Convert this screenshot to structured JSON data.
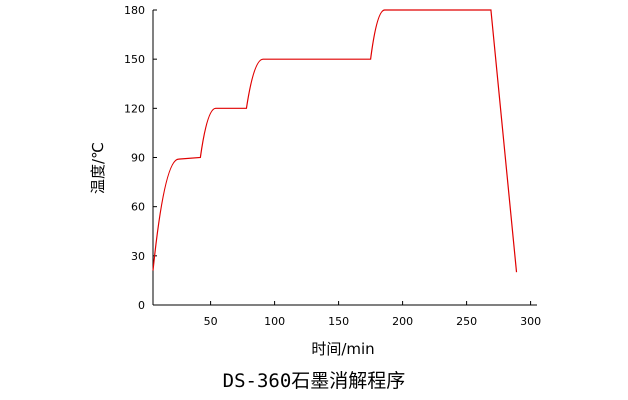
{
  "chart_data": {
    "type": "line",
    "title": "DS-360石墨消解程序",
    "xlabel": "时间/min",
    "ylabel": "温度/℃",
    "xlim": [
      5,
      305
    ],
    "ylim": [
      0,
      180
    ],
    "x_ticks": [
      50,
      100,
      150,
      200,
      250,
      300
    ],
    "y_ticks": [
      0,
      30,
      60,
      90,
      120,
      150,
      180
    ],
    "grid": false,
    "line_color": "#e00000",
    "series": [
      {
        "points": [
          {
            "x": 5,
            "y": 21,
            "segment": "start"
          },
          {
            "x": 25,
            "y": 89,
            "segment": "concave"
          },
          {
            "x": 42,
            "y": 90,
            "segment": "linear"
          },
          {
            "x": 54,
            "y": 120,
            "segment": "concave"
          },
          {
            "x": 78,
            "y": 120,
            "segment": "linear"
          },
          {
            "x": 91,
            "y": 150,
            "segment": "concave"
          },
          {
            "x": 175,
            "y": 150,
            "segment": "linear"
          },
          {
            "x": 186,
            "y": 180,
            "segment": "concave"
          },
          {
            "x": 269,
            "y": 180,
            "segment": "linear"
          },
          {
            "x": 289,
            "y": 20,
            "segment": "linear"
          }
        ]
      }
    ]
  }
}
